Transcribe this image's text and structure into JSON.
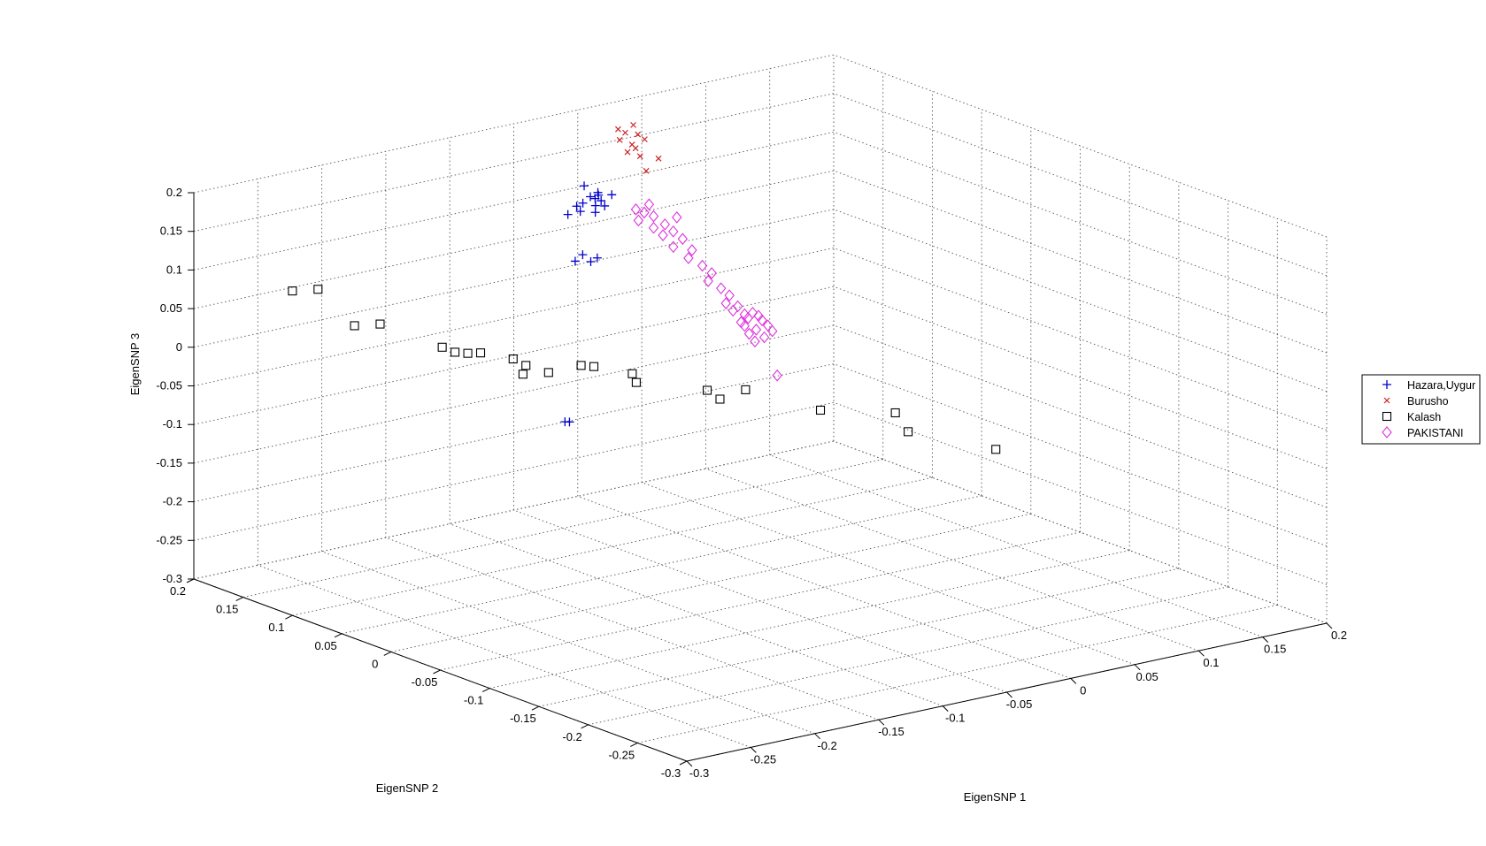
{
  "chart_data": {
    "type": "scatter",
    "dimensions": 3,
    "xlabel": "EigenSNP 1",
    "ylabel": "EigenSNP 2",
    "zlabel": "EigenSNP 3",
    "xlim": [
      -0.3,
      0.2
    ],
    "ylim": [
      -0.3,
      0.2
    ],
    "zlim": [
      -0.3,
      0.2
    ],
    "xticks": [
      "-0.3",
      "-0.25",
      "-0.2",
      "-0.15",
      "-0.1",
      "-0.05",
      "0",
      "0.05",
      "0.1",
      "0.15",
      "0.2"
    ],
    "yticks": [
      "-0.3",
      "-0.25",
      "-0.2",
      "-0.15",
      "-0.1",
      "-0.05",
      "0",
      "0.05",
      "0.1",
      "0.15",
      "0.2"
    ],
    "zticks": [
      "-0.3",
      "-0.25",
      "-0.2",
      "-0.15",
      "-0.1",
      "-0.05",
      "0",
      "0.05",
      "0.1",
      "0.15",
      "0.2"
    ],
    "grid": true,
    "legend_position": "right",
    "series": [
      {
        "name": "Hazara,Uygur",
        "marker": "plus",
        "color": "#0000cc",
        "points": [
          [
            0.005,
            0.2,
            0.1
          ],
          [
            0.008,
            0.19,
            0.095
          ],
          [
            0.006,
            0.195,
            0.088
          ],
          [
            0.012,
            0.198,
            0.082
          ],
          [
            0.004,
            0.2,
            0.078
          ],
          [
            0.01,
            0.192,
            0.09
          ],
          [
            0.003,
            0.205,
            0.072
          ],
          [
            0.009,
            0.188,
            0.085
          ],
          [
            0.0,
            0.21,
            0.06
          ],
          [
            0.01,
            0.195,
            0.075
          ],
          [
            0.015,
            0.185,
            0.092
          ],
          [
            0.002,
            0.2,
            0.068
          ],
          [
            0.006,
            0.19,
            0.07
          ],
          [
            0.011,
            0.187,
            0.078
          ],
          [
            0.0,
            0.195,
            0.015
          ],
          [
            0.006,
            0.188,
            0.012
          ],
          [
            -0.002,
            0.2,
            0.005
          ],
          [
            0.004,
            0.192,
            0.006
          ],
          [
            -0.01,
            0.2,
            -0.2
          ],
          [
            -0.008,
            0.198,
            -0.2
          ]
        ]
      },
      {
        "name": "Burusho",
        "marker": "x",
        "color": "#cc2222",
        "points": [
          [
            0.02,
            0.185,
            0.175
          ],
          [
            0.028,
            0.18,
            0.18
          ],
          [
            0.024,
            0.183,
            0.17
          ],
          [
            0.03,
            0.178,
            0.168
          ],
          [
            0.022,
            0.186,
            0.16
          ],
          [
            0.027,
            0.18,
            0.155
          ],
          [
            0.033,
            0.175,
            0.162
          ],
          [
            0.029,
            0.179,
            0.15
          ],
          [
            0.025,
            0.182,
            0.145
          ],
          [
            0.031,
            0.177,
            0.14
          ],
          [
            0.035,
            0.176,
            0.12
          ],
          [
            0.04,
            0.17,
            0.137
          ]
        ]
      },
      {
        "name": "Kalash",
        "marker": "square",
        "color": "#000000",
        "points": [
          [
            -0.3,
            0.1,
            0.12
          ],
          [
            -0.28,
            0.1,
            0.115
          ],
          [
            -0.29,
            0.05,
            0.095
          ],
          [
            -0.27,
            0.05,
            0.09
          ],
          [
            -0.26,
            0.0,
            0.08
          ],
          [
            -0.25,
            0.0,
            0.07
          ],
          [
            -0.24,
            0.0,
            0.065
          ],
          [
            -0.23,
            0.0,
            0.062
          ],
          [
            -0.22,
            -0.02,
            0.06
          ],
          [
            -0.21,
            -0.02,
            0.048
          ],
          [
            -0.22,
            -0.03,
            0.045
          ],
          [
            -0.2,
            -0.03,
            0.04
          ],
          [
            -0.19,
            -0.05,
            0.055
          ],
          [
            -0.18,
            -0.05,
            0.05
          ],
          [
            -0.17,
            -0.08,
            0.04
          ],
          [
            -0.15,
            -0.05,
            0.03
          ],
          [
            -0.13,
            -0.1,
            0.025
          ],
          [
            -0.12,
            -0.1,
            0.01
          ],
          [
            -0.1,
            -0.1,
            0.015
          ],
          [
            -0.08,
            -0.15,
            0.005
          ],
          [
            -0.05,
            -0.2,
            -0.01
          ],
          [
            -0.02,
            -0.25,
            -0.02
          ],
          [
            -0.06,
            -0.2,
            0.018
          ]
        ]
      },
      {
        "name": "PAKISTANI",
        "marker": "diamond",
        "color": "#dd33dd",
        "points": [
          [
            0.03,
            0.18,
            0.07
          ],
          [
            0.035,
            0.178,
            0.065
          ],
          [
            0.04,
            0.175,
            0.06
          ],
          [
            0.032,
            0.18,
            0.055
          ],
          [
            0.045,
            0.17,
            0.05
          ],
          [
            0.04,
            0.175,
            0.045
          ],
          [
            0.05,
            0.168,
            0.04
          ],
          [
            0.045,
            0.172,
            0.035
          ],
          [
            0.055,
            0.165,
            0.03
          ],
          [
            0.05,
            0.168,
            0.02
          ],
          [
            0.06,
            0.162,
            0.015
          ],
          [
            0.058,
            0.163,
            0.005
          ],
          [
            0.065,
            0.158,
            -0.005
          ],
          [
            0.07,
            0.155,
            -0.015
          ],
          [
            0.068,
            0.156,
            -0.025
          ],
          [
            0.075,
            0.152,
            -0.035
          ],
          [
            0.08,
            0.15,
            -0.045
          ],
          [
            0.078,
            0.151,
            -0.055
          ],
          [
            0.085,
            0.148,
            -0.06
          ],
          [
            0.082,
            0.149,
            -0.065
          ],
          [
            0.088,
            0.145,
            -0.07
          ],
          [
            0.09,
            0.144,
            -0.075
          ],
          [
            0.086,
            0.146,
            -0.08
          ],
          [
            0.092,
            0.142,
            -0.068
          ],
          [
            0.095,
            0.14,
            -0.072
          ],
          [
            0.088,
            0.145,
            -0.085
          ],
          [
            0.094,
            0.141,
            -0.09
          ],
          [
            0.097,
            0.139,
            -0.078
          ],
          [
            0.09,
            0.143,
            -0.095
          ],
          [
            0.1,
            0.137,
            -0.085
          ],
          [
            0.098,
            0.138,
            -0.1
          ],
          [
            0.093,
            0.141,
            -0.105
          ],
          [
            0.102,
            0.135,
            -0.092
          ],
          [
            0.105,
            0.134,
            -0.15
          ],
          [
            0.038,
            0.177,
            0.075
          ],
          [
            0.052,
            0.167,
            0.058
          ]
        ]
      }
    ]
  }
}
